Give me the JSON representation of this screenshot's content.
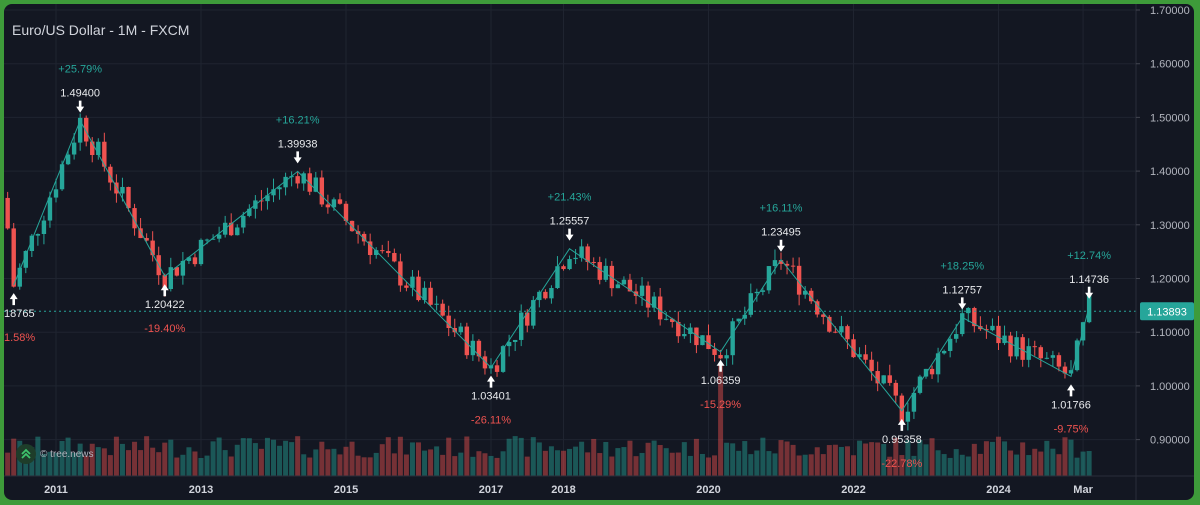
{
  "header": {
    "title": "Euro/US Dollar - 1M - FXCM"
  },
  "watermark": {
    "text": "tree.news",
    "icon": "double-chevron-up-icon"
  },
  "colors": {
    "up": "#26a69a",
    "down": "#ef5350",
    "line": "#26a69a",
    "price_tag": "#26a69a",
    "background": "#131722"
  },
  "chart_data": {
    "type": "candlestick",
    "title": "Euro/US Dollar - 1M - FXCM",
    "y_ticks": [
      "1.70000",
      "1.60000",
      "1.50000",
      "1.40000",
      "1.30000",
      "1.20000",
      "1.10000",
      "1.00000",
      "0.90000"
    ],
    "y_range": [
      0.83,
      1.72
    ],
    "x_ticks": [
      "2011",
      "2013",
      "2015",
      "2017",
      "2018",
      "2020",
      "2022",
      "2024",
      "Mar"
    ],
    "current_price": "1.13893",
    "grid": true,
    "swing_points": [
      {
        "date": "2010-06",
        "price": 1.18765,
        "label": "18765",
        "change": "1.58%",
        "dir": "down"
      },
      {
        "date": "2011-05",
        "price": 1.494,
        "label": "1.49400",
        "change": "+25.79%",
        "dir": "up"
      },
      {
        "date": "2012-07",
        "price": 1.20422,
        "label": "1.20422",
        "change": "-19.40%",
        "dir": "down"
      },
      {
        "date": "2014-05",
        "price": 1.39938,
        "label": "1.39938",
        "change": "+16.21%",
        "dir": "up"
      },
      {
        "date": "2017-01",
        "price": 1.03401,
        "label": "1.03401",
        "change": "-26.11%",
        "dir": "down"
      },
      {
        "date": "2018-02",
        "price": 1.25557,
        "label": "1.25557",
        "change": "+21.43%",
        "dir": "up"
      },
      {
        "date": "2020-03",
        "price": 1.06359,
        "label": "1.06359",
        "change": "-15.29%",
        "dir": "down"
      },
      {
        "date": "2021-01",
        "price": 1.23495,
        "label": "1.23495",
        "change": "+16.11%",
        "dir": "up"
      },
      {
        "date": "2022-09",
        "price": 0.95358,
        "label": "0.95358",
        "change": "-22.78%",
        "dir": "down"
      },
      {
        "date": "2023-07",
        "price": 1.12757,
        "label": "1.12757",
        "change": "+18.25%",
        "dir": "up"
      },
      {
        "date": "2025-01",
        "price": 1.01766,
        "label": "1.01766",
        "change": "-9.75%",
        "dir": "down"
      },
      {
        "date": "2025-04",
        "price": 1.14736,
        "label": "1.14736",
        "change": "+12.74%",
        "dir": "up"
      }
    ]
  }
}
